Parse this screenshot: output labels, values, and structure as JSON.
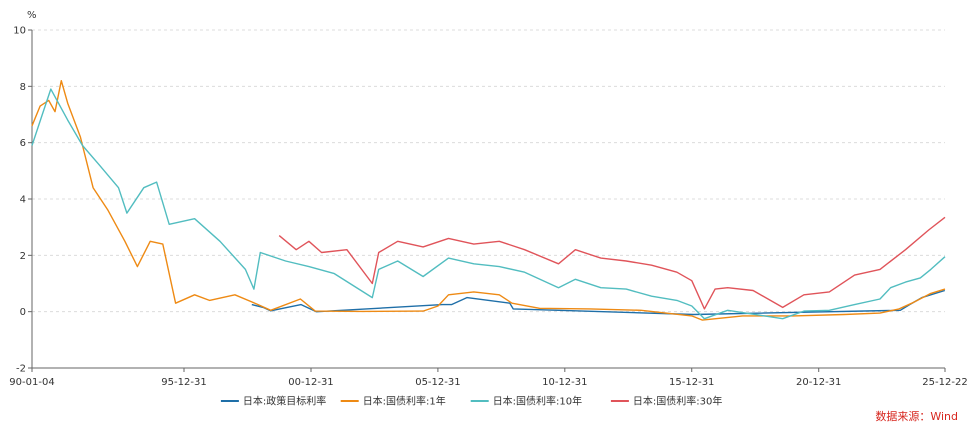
{
  "chart_data": {
    "type": "line",
    "unit_label": "%",
    "ylim": [
      -2,
      10
    ],
    "y_ticks": [
      -2,
      0,
      2,
      4,
      6,
      8,
      10
    ],
    "x_range": [
      "1990-01-04",
      "2025-12-22"
    ],
    "x_ticks": [
      {
        "label": "90-01-04",
        "date": "1990-01-04"
      },
      {
        "label": "95-12-31",
        "date": "1995-12-31"
      },
      {
        "label": "00-12-31",
        "date": "2000-12-31"
      },
      {
        "label": "05-12-31",
        "date": "2005-12-31"
      },
      {
        "label": "10-12-31",
        "date": "2010-12-31"
      },
      {
        "label": "15-12-31",
        "date": "2015-12-31"
      },
      {
        "label": "20-12-31",
        "date": "2020-12-31"
      },
      {
        "label": "25-12-22",
        "date": "2025-12-22"
      }
    ],
    "grid": "horizontal-dashed",
    "legend_position": "bottom",
    "series": [
      {
        "name": "日本:政策目标利率",
        "color": "#1f6fa8",
        "points": [
          [
            "1998-09-01",
            0.25
          ],
          [
            "1999-02-12",
            0.15
          ],
          [
            "1999-06-01",
            0.03
          ],
          [
            "2000-08-11",
            0.25
          ],
          [
            "2001-03-19",
            0.0
          ],
          [
            "2001-04-01",
            0.0
          ],
          [
            "2006-03-09",
            0.25
          ],
          [
            "2006-07-14",
            0.25
          ],
          [
            "2007-02-21",
            0.5
          ],
          [
            "2008-10-31",
            0.3
          ],
          [
            "2008-12-19",
            0.1
          ],
          [
            "2010-10-05",
            0.05
          ],
          [
            "2016-01-29",
            -0.1
          ],
          [
            "2024-03-19",
            0.05
          ],
          [
            "2024-07-31",
            0.25
          ],
          [
            "2025-01-24",
            0.5
          ],
          [
            "2025-12-19",
            0.75
          ]
        ]
      },
      {
        "name": "日本:国债利率:1年",
        "color": "#ee8a14",
        "points": [
          [
            "1990-01-04",
            6.6
          ],
          [
            "1990-05-01",
            7.3
          ],
          [
            "1990-09-01",
            7.5
          ],
          [
            "1990-12-01",
            7.1
          ],
          [
            "1991-03-01",
            8.2
          ],
          [
            "1991-06-01",
            7.4
          ],
          [
            "1991-12-01",
            6.2
          ],
          [
            "1992-06-01",
            4.4
          ],
          [
            "1993-01-01",
            3.6
          ],
          [
            "1993-09-01",
            2.5
          ],
          [
            "1994-03-01",
            1.6
          ],
          [
            "1994-09-01",
            2.5
          ],
          [
            "1995-03-01",
            2.4
          ],
          [
            "1995-09-01",
            0.3
          ],
          [
            "1996-06-01",
            0.6
          ],
          [
            "1997-01-01",
            0.4
          ],
          [
            "1998-01-01",
            0.6
          ],
          [
            "1998-12-01",
            0.25
          ],
          [
            "1999-06-01",
            0.05
          ],
          [
            "2000-08-01",
            0.45
          ],
          [
            "2001-03-01",
            0.02
          ],
          [
            "2003-01-01",
            0.01
          ],
          [
            "2005-06-01",
            0.02
          ],
          [
            "2006-01-01",
            0.2
          ],
          [
            "2006-06-01",
            0.6
          ],
          [
            "2007-06-01",
            0.7
          ],
          [
            "2008-06-01",
            0.6
          ],
          [
            "2008-12-01",
            0.3
          ],
          [
            "2010-01-01",
            0.12
          ],
          [
            "2012-01-01",
            0.1
          ],
          [
            "2014-01-01",
            0.05
          ],
          [
            "2016-01-01",
            -0.15
          ],
          [
            "2016-06-01",
            -0.3
          ],
          [
            "2018-01-01",
            -0.15
          ],
          [
            "2020-01-01",
            -0.15
          ],
          [
            "2022-01-01",
            -0.1
          ],
          [
            "2023-06-01",
            -0.05
          ],
          [
            "2024-03-01",
            0.1
          ],
          [
            "2024-09-01",
            0.3
          ],
          [
            "2025-06-01",
            0.65
          ],
          [
            "2025-12-22",
            0.8
          ]
        ]
      },
      {
        "name": "日本:国债利率:10年",
        "color": "#52bdc0",
        "points": [
          [
            "1990-01-04",
            5.9
          ],
          [
            "1990-06-01",
            7.0
          ],
          [
            "1990-10-01",
            7.9
          ],
          [
            "1991-06-01",
            6.8
          ],
          [
            "1992-01-01",
            5.9
          ],
          [
            "1992-09-01",
            5.2
          ],
          [
            "1993-06-01",
            4.4
          ],
          [
            "1993-10-01",
            3.5
          ],
          [
            "1994-06-01",
            4.4
          ],
          [
            "1994-12-01",
            4.6
          ],
          [
            "1995-06-01",
            3.1
          ],
          [
            "1996-06-01",
            3.3
          ],
          [
            "1997-06-01",
            2.5
          ],
          [
            "1998-06-01",
            1.5
          ],
          [
            "1998-10-01",
            0.8
          ],
          [
            "1999-01-01",
            2.1
          ],
          [
            "2000-01-01",
            1.8
          ],
          [
            "2000-12-01",
            1.6
          ],
          [
            "2001-12-01",
            1.35
          ],
          [
            "2003-06-01",
            0.5
          ],
          [
            "2003-09-01",
            1.5
          ],
          [
            "2004-06-01",
            1.8
          ],
          [
            "2005-06-01",
            1.25
          ],
          [
            "2006-06-01",
            1.9
          ],
          [
            "2007-06-01",
            1.7
          ],
          [
            "2008-06-01",
            1.6
          ],
          [
            "2009-06-01",
            1.4
          ],
          [
            "2010-10-01",
            0.85
          ],
          [
            "2011-06-01",
            1.15
          ],
          [
            "2012-06-01",
            0.85
          ],
          [
            "2013-06-01",
            0.8
          ],
          [
            "2014-06-01",
            0.55
          ],
          [
            "2015-06-01",
            0.4
          ],
          [
            "2016-01-01",
            0.2
          ],
          [
            "2016-07-01",
            -0.25
          ],
          [
            "2017-06-01",
            0.05
          ],
          [
            "2019-08-01",
            -0.25
          ],
          [
            "2020-06-01",
            0.02
          ],
          [
            "2021-06-01",
            0.05
          ],
          [
            "2022-06-01",
            0.25
          ],
          [
            "2023-06-01",
            0.45
          ],
          [
            "2023-11-01",
            0.85
          ],
          [
            "2024-06-01",
            1.05
          ],
          [
            "2025-01-01",
            1.2
          ],
          [
            "2025-06-01",
            1.5
          ],
          [
            "2025-12-22",
            1.95
          ]
        ]
      },
      {
        "name": "日本:国债利率:30年",
        "color": "#e0545a",
        "points": [
          [
            "1999-10-01",
            2.7
          ],
          [
            "2000-06-01",
            2.2
          ],
          [
            "2000-12-01",
            2.5
          ],
          [
            "2001-06-01",
            2.1
          ],
          [
            "2002-06-01",
            2.2
          ],
          [
            "2003-06-01",
            1.0
          ],
          [
            "2003-09-01",
            2.1
          ],
          [
            "2004-06-01",
            2.5
          ],
          [
            "2005-06-01",
            2.3
          ],
          [
            "2006-06-01",
            2.6
          ],
          [
            "2007-06-01",
            2.4
          ],
          [
            "2008-06-01",
            2.5
          ],
          [
            "2009-06-01",
            2.2
          ],
          [
            "2010-10-01",
            1.7
          ],
          [
            "2011-06-01",
            2.2
          ],
          [
            "2012-06-01",
            1.9
          ],
          [
            "2013-06-01",
            1.8
          ],
          [
            "2014-06-01",
            1.65
          ],
          [
            "2015-06-01",
            1.4
          ],
          [
            "2016-01-01",
            1.1
          ],
          [
            "2016-07-01",
            0.1
          ],
          [
            "2016-12-01",
            0.8
          ],
          [
            "2017-06-01",
            0.85
          ],
          [
            "2018-06-01",
            0.75
          ],
          [
            "2019-08-01",
            0.15
          ],
          [
            "2020-06-01",
            0.6
          ],
          [
            "2021-06-01",
            0.7
          ],
          [
            "2022-06-01",
            1.3
          ],
          [
            "2023-06-01",
            1.5
          ],
          [
            "2024-06-01",
            2.2
          ],
          [
            "2025-05-01",
            2.9
          ],
          [
            "2025-12-22",
            3.35
          ]
        ]
      }
    ],
    "legend": [
      "日本:政策目标利率",
      "日本:国债利率:1年",
      "日本:国债利率:10年",
      "日本:国债利率:30年"
    ]
  },
  "source_text": "数据来源：Wind"
}
